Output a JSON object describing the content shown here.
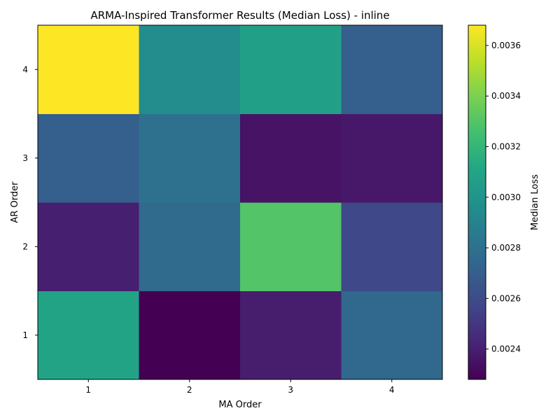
{
  "chart_data": {
    "type": "heatmap",
    "title": "ARMA-Inspired Transformer Results (Median Loss) - inline",
    "xlabel": "MA Order",
    "ylabel": "AR Order",
    "x_categories": [
      "1",
      "2",
      "3",
      "4"
    ],
    "y_categories": [
      "1",
      "2",
      "3",
      "4"
    ],
    "colormap": "viridis",
    "colorbar": {
      "label": "Median Loss",
      "range": [
        0.00228,
        0.00368
      ],
      "ticks": [
        "0.0024",
        "0.0026",
        "0.0028",
        "0.0030",
        "0.0032",
        "0.0034",
        "0.0036"
      ]
    },
    "values": [
      [
        0.00309,
        0.00228,
        0.00239,
        0.00275
      ],
      [
        0.0024,
        0.00276,
        0.0033,
        0.00258
      ],
      [
        0.0027,
        0.0028,
        0.00235,
        0.00237
      ],
      [
        0.00368,
        0.00295,
        0.00307,
        0.0027
      ]
    ]
  }
}
